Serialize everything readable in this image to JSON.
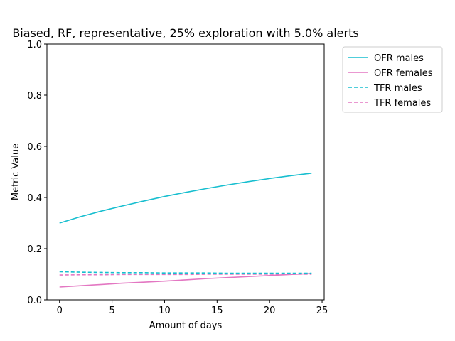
{
  "chart_data": {
    "type": "line",
    "title": "Biased, RF, representative, 25% exploration with 5.0% alerts",
    "xlabel": "Amount of days",
    "ylabel": "Metric Value",
    "xlim": [
      -1.2,
      25.2
    ],
    "ylim": [
      0,
      1
    ],
    "xticks": [
      0,
      5,
      10,
      15,
      20,
      25
    ],
    "yticks": [
      0.0,
      0.2,
      0.4,
      0.6,
      0.8,
      1.0
    ],
    "grid": false,
    "legend_position": "outside-top-right",
    "series": [
      {
        "name": "OFR males",
        "color": "#17becf",
        "dash": "solid",
        "x": [
          0,
          2,
          4,
          6,
          8,
          10,
          12,
          14,
          16,
          18,
          20,
          22,
          24
        ],
        "y": [
          0.3,
          0.325,
          0.347,
          0.367,
          0.386,
          0.404,
          0.42,
          0.435,
          0.449,
          0.462,
          0.474,
          0.485,
          0.495
        ]
      },
      {
        "name": "OFR females",
        "color": "#e377c2",
        "dash": "solid",
        "x": [
          0,
          2,
          4,
          6,
          8,
          10,
          12,
          14,
          16,
          18,
          20,
          22,
          24
        ],
        "y": [
          0.05,
          0.055,
          0.06,
          0.065,
          0.069,
          0.073,
          0.078,
          0.083,
          0.087,
          0.091,
          0.095,
          0.099,
          0.103
        ]
      },
      {
        "name": "TFR males",
        "color": "#17becf",
        "dash": "dashed",
        "x": [
          0,
          2,
          4,
          6,
          8,
          10,
          12,
          14,
          16,
          18,
          20,
          22,
          24
        ],
        "y": [
          0.11,
          0.108,
          0.107,
          0.106,
          0.106,
          0.105,
          0.105,
          0.105,
          0.104,
          0.104,
          0.104,
          0.104,
          0.104
        ]
      },
      {
        "name": "TFR females",
        "color": "#e377c2",
        "dash": "dashed",
        "x": [
          0,
          2,
          4,
          6,
          8,
          10,
          12,
          14,
          16,
          18,
          20,
          22,
          24
        ],
        "y": [
          0.097,
          0.098,
          0.098,
          0.099,
          0.099,
          0.099,
          0.099,
          0.1,
          0.1,
          0.1,
          0.1,
          0.1,
          0.1
        ]
      }
    ]
  }
}
